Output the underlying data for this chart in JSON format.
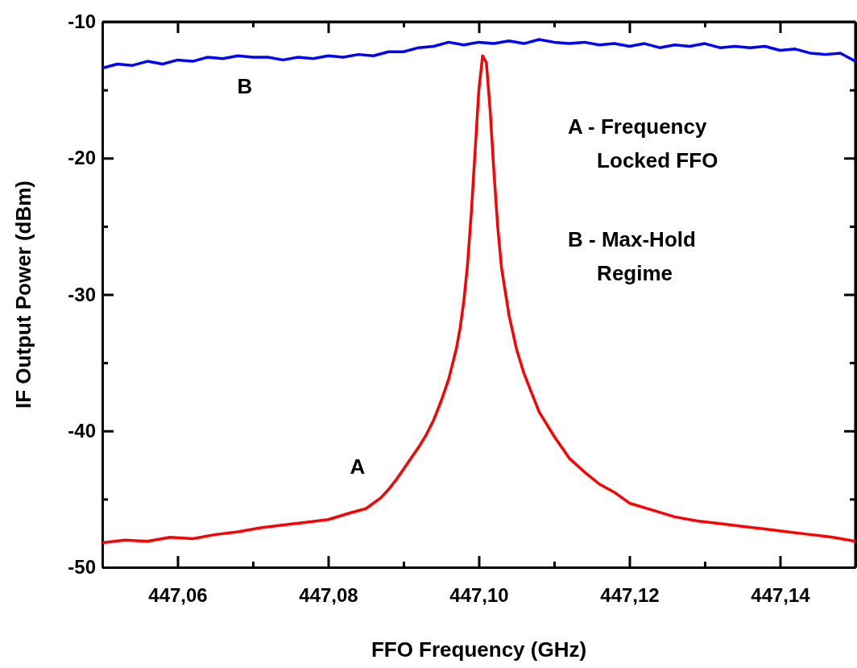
{
  "chart_data": {
    "type": "line",
    "xlabel": "FFO Frequency (GHz)",
    "ylabel": "IF Output Power (dBm)",
    "xlim": [
      447.05,
      447.15
    ],
    "ylim": [
      -50,
      -10
    ],
    "xticks": [
      {
        "value": 447.05,
        "label": null
      },
      {
        "value": 447.06,
        "label": "447,06"
      },
      {
        "value": 447.07,
        "label": null
      },
      {
        "value": 447.08,
        "label": "447,08"
      },
      {
        "value": 447.09,
        "label": null
      },
      {
        "value": 447.1,
        "label": "447,10"
      },
      {
        "value": 447.11,
        "label": null
      },
      {
        "value": 447.12,
        "label": "447,12"
      },
      {
        "value": 447.13,
        "label": null
      },
      {
        "value": 447.14,
        "label": "447,14"
      }
    ],
    "yticks": [
      -50,
      {
        "value": -45,
        "label": null
      },
      -40,
      {
        "value": -35,
        "label": null
      },
      -30,
      {
        "value": -25,
        "label": null
      },
      -20,
      {
        "value": -15,
        "label": null
      },
      -10
    ],
    "grid": false,
    "marker": "none",
    "line_style": "solid",
    "series": [
      {
        "color": "#0000ff",
        "x": [
          447.05,
          447.052,
          447.054,
          447.056,
          447.058,
          447.06,
          447.062,
          447.064,
          447.066,
          447.068,
          447.07,
          447.072,
          447.074,
          447.076,
          447.078,
          447.08,
          447.082,
          447.084,
          447.086,
          447.088,
          447.09,
          447.092,
          447.094,
          447.096,
          447.098,
          447.1,
          447.102,
          447.104,
          447.106,
          447.108,
          447.11,
          447.112,
          447.114,
          447.116,
          447.118,
          447.12,
          447.122,
          447.124,
          447.126,
          447.128,
          447.13,
          447.132,
          447.134,
          447.136,
          447.138,
          447.14,
          447.142,
          447.144,
          447.146,
          447.148,
          447.15
        ],
        "values": [
          -13.4,
          -13.1,
          -13.2,
          -12.9,
          -13.1,
          -12.8,
          -12.9,
          -12.6,
          -12.7,
          -12.5,
          -12.6,
          -12.6,
          -12.8,
          -12.6,
          -12.7,
          -12.5,
          -12.6,
          -12.4,
          -12.5,
          -12.2,
          -12.2,
          -11.9,
          -11.8,
          -11.5,
          -11.7,
          -11.5,
          -11.6,
          -11.4,
          -11.6,
          -11.3,
          -11.5,
          -11.6,
          -11.5,
          -11.7,
          -11.6,
          -11.8,
          -11.6,
          -11.9,
          -11.7,
          -11.8,
          -11.6,
          -11.9,
          -11.8,
          -11.9,
          -11.8,
          -12.1,
          -12.0,
          -12.3,
          -12.4,
          -12.3,
          -12.9
        ]
      },
      {
        "color": "#ff0000",
        "x": [
          447.05,
          447.053,
          447.056,
          447.059,
          447.062,
          447.065,
          447.068,
          447.071,
          447.074,
          447.077,
          447.08,
          447.083,
          447.085,
          447.087,
          447.088,
          447.089,
          447.09,
          447.091,
          447.092,
          447.093,
          447.094,
          447.095,
          447.096,
          447.097,
          447.0975,
          447.098,
          447.0985,
          447.099,
          447.0995,
          447.1,
          447.1005,
          447.101,
          447.1015,
          447.102,
          447.1025,
          447.103,
          447.104,
          447.105,
          447.106,
          447.107,
          447.108,
          447.11,
          447.112,
          447.114,
          447.116,
          447.118,
          447.12,
          447.123,
          447.126,
          447.129,
          447.132,
          447.135,
          447.138,
          447.141,
          447.144,
          447.147,
          447.15
        ],
        "values": [
          -48.2,
          -48.0,
          -48.1,
          -47.8,
          -47.9,
          -47.6,
          -47.4,
          -47.1,
          -46.9,
          -46.7,
          -46.5,
          -46.0,
          -45.7,
          -44.9,
          -44.3,
          -43.6,
          -42.8,
          -42.0,
          -41.2,
          -40.3,
          -39.2,
          -37.8,
          -36.2,
          -34.0,
          -32.5,
          -30.5,
          -27.8,
          -24.0,
          -19.5,
          -15.0,
          -12.5,
          -13.0,
          -16.5,
          -21.0,
          -25.0,
          -28.0,
          -31.5,
          -34.0,
          -35.8,
          -37.2,
          -38.6,
          -40.4,
          -42.0,
          -43.0,
          -43.9,
          -44.5,
          -45.3,
          -45.8,
          -46.3,
          -46.6,
          -46.8,
          -47.0,
          -47.2,
          -47.4,
          -47.6,
          -47.8,
          -48.1
        ]
      }
    ],
    "annotations": [
      "A",
      "B",
      "A - Frequency\n     Locked FFO",
      "B - Max-Hold\n     Regime"
    ]
  }
}
